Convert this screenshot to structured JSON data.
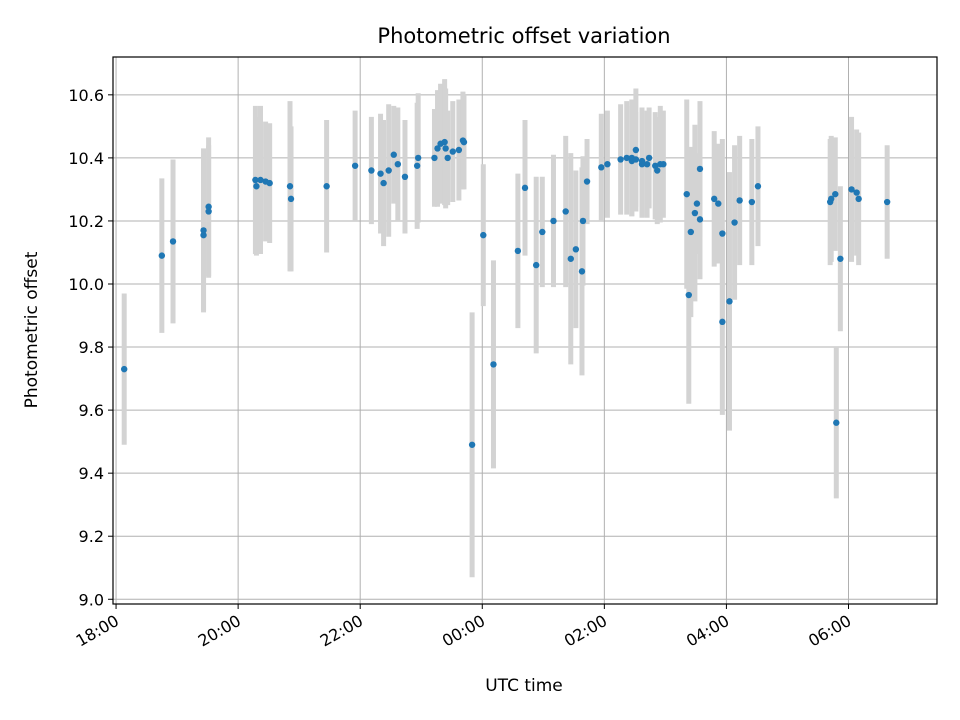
{
  "chart_data": {
    "type": "scatter",
    "title": "Photometric offset variation",
    "xlabel": "UTC time",
    "ylabel": "Photometric offset",
    "x_unit": "UTC",
    "x_start": "18:00",
    "xlim": [
      "17:57",
      "07:27"
    ],
    "ylim": [
      8.985,
      10.72
    ],
    "x_ticks": [
      "18:00",
      "20:00",
      "22:00",
      "00:00",
      "02:00",
      "04:00",
      "06:00"
    ],
    "y_ticks": [
      "9.0",
      "9.2",
      "9.4",
      "9.6",
      "9.8",
      "10.0",
      "10.2",
      "10.4",
      "10.6"
    ],
    "grid": true,
    "marker_color": "#1f77b4",
    "errorbar_color": "#d3d3d3",
    "series": [
      {
        "x": [
          "18:08",
          "18:45",
          "18:56",
          "19:26",
          "19:26",
          "19:31",
          "19:31",
          "20:17",
          "20:18",
          "20:22",
          "20:27",
          "20:31",
          "20:51",
          "20:52",
          "21:27",
          "21:55",
          "22:11",
          "22:20",
          "22:23",
          "22:28",
          "22:33",
          "22:37",
          "22:44",
          "22:56",
          "22:57",
          "23:13",
          "23:16",
          "23:19",
          "23:23",
          "23:24",
          "23:26",
          "23:31",
          "23:37",
          "23:41",
          "23:42",
          "23:50",
          "00:01",
          "00:11",
          "00:35",
          "00:42",
          "00:53",
          "00:59",
          "01:10",
          "01:22",
          "01:27",
          "01:32",
          "01:38",
          "01:39",
          "01:43",
          "01:57",
          "02:03",
          "02:16",
          "02:22",
          "02:27",
          "02:27",
          "02:31",
          "02:31",
          "02:37",
          "02:37",
          "02:42",
          "02:44",
          "02:50",
          "02:52",
          "02:55",
          "02:58",
          "03:21",
          "03:23",
          "03:25",
          "03:29",
          "03:31",
          "03:34",
          "03:34",
          "03:48",
          "03:52",
          "03:56",
          "03:56",
          "04:03",
          "04:08",
          "04:13",
          "04:25",
          "04:31",
          "05:42",
          "05:43",
          "05:47",
          "05:48",
          "05:52",
          "06:03",
          "06:08",
          "06:10",
          "06:38"
        ],
        "y": [
          9.73,
          10.09,
          10.135,
          10.155,
          10.17,
          10.23,
          10.245,
          10.33,
          10.31,
          10.33,
          10.325,
          10.32,
          10.31,
          10.27,
          10.31,
          10.375,
          10.36,
          10.35,
          10.32,
          10.36,
          10.41,
          10.38,
          10.34,
          10.375,
          10.4,
          10.4,
          10.43,
          10.445,
          10.45,
          10.43,
          10.4,
          10.42,
          10.425,
          10.455,
          10.45,
          9.49,
          10.155,
          9.745,
          10.105,
          10.305,
          10.06,
          10.165,
          10.2,
          10.23,
          10.08,
          10.11,
          10.04,
          10.2,
          10.325,
          10.37,
          10.38,
          10.395,
          10.4,
          10.39,
          10.4,
          10.425,
          10.395,
          10.38,
          10.39,
          10.38,
          10.4,
          10.375,
          10.36,
          10.38,
          10.38,
          10.285,
          9.965,
          10.165,
          10.225,
          10.255,
          10.365,
          10.205,
          10.27,
          10.255,
          10.16,
          9.88,
          9.945,
          10.195,
          10.265,
          10.26,
          10.31,
          10.26,
          10.27,
          10.285,
          9.56,
          10.08,
          10.3,
          10.29,
          10.27,
          10.26
        ],
        "yerr_lower": [
          0.24,
          0.245,
          0.26,
          0.24,
          0.26,
          0.21,
          0.22,
          0.235,
          0.22,
          0.235,
          0.19,
          0.19,
          0.27,
          0.23,
          0.21,
          0.175,
          0.17,
          0.19,
          0.2,
          0.21,
          0.155,
          0.18,
          0.18,
          0.2,
          0.205,
          0.155,
          0.185,
          0.19,
          0.2,
          0.19,
          0.15,
          0.16,
          0.16,
          0.155,
          0.15,
          0.42,
          0.225,
          0.33,
          0.245,
          0.215,
          0.28,
          0.175,
          0.21,
          0.24,
          0.335,
          0.25,
          0.33,
          0.205,
          0.135,
          0.17,
          0.17,
          0.175,
          0.18,
          0.175,
          0.185,
          0.195,
          0.15,
          0.17,
          0.17,
          0.17,
          0.16,
          0.17,
          0.17,
          0.185,
          0.17,
          0.3,
          0.345,
          0.27,
          0.28,
          0.16,
          0.215,
          0.19,
          0.215,
          0.19,
          0.3,
          0.295,
          0.41,
          0.245,
          0.205,
          0.2,
          0.19,
          0.2,
          0.2,
          0.18,
          0.24,
          0.23,
          0.23,
          0.2,
          0.21,
          0.18
        ],
        "yerr_upper": [
          0.24,
          0.245,
          0.26,
          0.24,
          0.26,
          0.21,
          0.22,
          0.235,
          0.22,
          0.235,
          0.19,
          0.19,
          0.27,
          0.23,
          0.21,
          0.175,
          0.17,
          0.19,
          0.2,
          0.21,
          0.155,
          0.18,
          0.18,
          0.2,
          0.205,
          0.155,
          0.185,
          0.19,
          0.2,
          0.19,
          0.15,
          0.16,
          0.16,
          0.155,
          0.15,
          0.42,
          0.225,
          0.33,
          0.245,
          0.215,
          0.28,
          0.175,
          0.21,
          0.24,
          0.335,
          0.25,
          0.33,
          0.205,
          0.135,
          0.17,
          0.17,
          0.175,
          0.18,
          0.175,
          0.185,
          0.195,
          0.15,
          0.17,
          0.17,
          0.17,
          0.16,
          0.17,
          0.17,
          0.185,
          0.17,
          0.3,
          0.345,
          0.27,
          0.28,
          0.16,
          0.215,
          0.19,
          0.215,
          0.19,
          0.3,
          0.295,
          0.41,
          0.245,
          0.205,
          0.2,
          0.19,
          0.2,
          0.2,
          0.18,
          0.24,
          0.23,
          0.23,
          0.2,
          0.21,
          0.18
        ]
      }
    ]
  }
}
